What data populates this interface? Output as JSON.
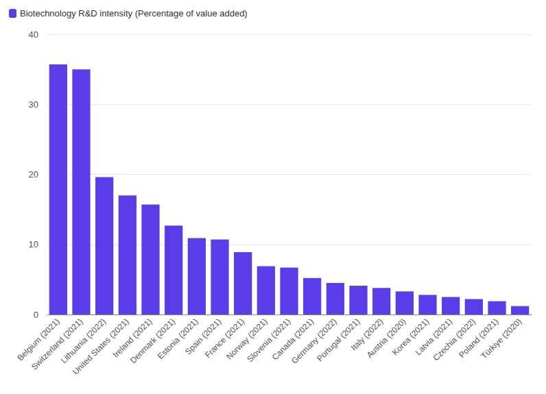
{
  "chart_data": {
    "type": "bar",
    "categories": [
      "Belgium (2021)",
      "Switzerland (2021)",
      "Lithuania (2022)",
      "United States (2021)",
      "Ireland (2021)",
      "Denmark (2021)",
      "Estonia (2021)",
      "Spain (2021)",
      "France (2021)",
      "Norway (2021)",
      "Slovenia (2021)",
      "Canada (2021)",
      "Germany (2022)",
      "Portugal (2021)",
      "Italy (2022)",
      "Austria (2020)",
      "Korea (2021)",
      "Latvia (2021)",
      "Czechia (2022)",
      "Poland (2021)",
      "Türkiye (2020)"
    ],
    "series": [
      {
        "name": "Biotechnology R&D intensity (Percentage of value added)",
        "color": "#5a3ce8",
        "values": [
          35.7,
          35.0,
          19.6,
          17.0,
          15.7,
          12.7,
          10.9,
          10.7,
          8.9,
          6.9,
          6.7,
          5.2,
          4.5,
          4.1,
          3.8,
          3.3,
          2.8,
          2.5,
          2.2,
          1.9,
          1.2
        ]
      }
    ],
    "ylim": [
      0,
      40
    ],
    "yticks": [
      0,
      10,
      20,
      30,
      40
    ],
    "grid": true,
    "legend": "top-left"
  }
}
